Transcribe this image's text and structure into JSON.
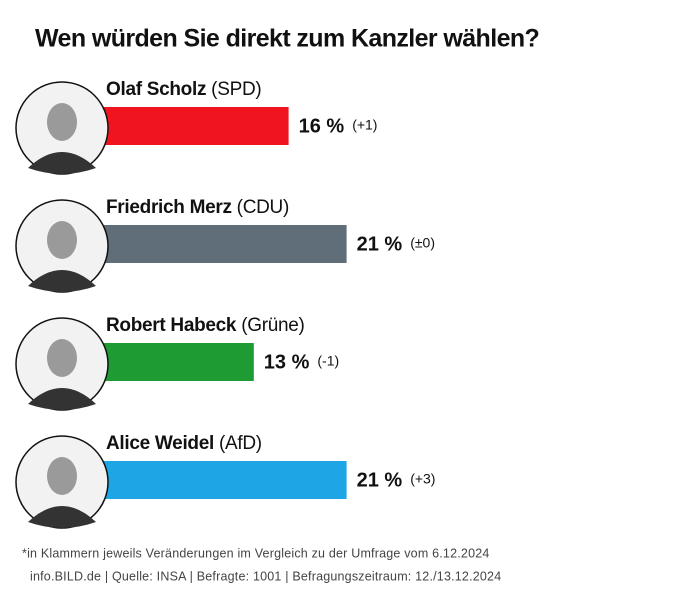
{
  "chart_data": {
    "type": "bar",
    "title": "Wen würden Sie direkt zum Kanzler wählen?",
    "categories": [
      "Olaf Scholz",
      "Friedrich Merz",
      "Robert Habeck",
      "Alice Weidel"
    ],
    "parties": [
      "(SPD)",
      "(CDU)",
      "(Grüne)",
      "(AfD)"
    ],
    "values": [
      16,
      21,
      13,
      21
    ],
    "value_labels": [
      "16 %",
      "21 %",
      "13 %",
      "21 %"
    ],
    "changes": [
      "(+1)",
      "(±0)",
      "(-1)",
      "(+3)"
    ],
    "colors": [
      "#f0141e",
      "#5f6e78",
      "#1e9b32",
      "#1ea5e6"
    ],
    "footnote": "*in Klammern jeweils Veränderungen im Vergleich zu der Umfrage vom 6.12.2024",
    "source": "info.BILD.de | Quelle: INSA | Befragte: 1001 | Befragungszeitraum: 12./13.12.2024"
  }
}
